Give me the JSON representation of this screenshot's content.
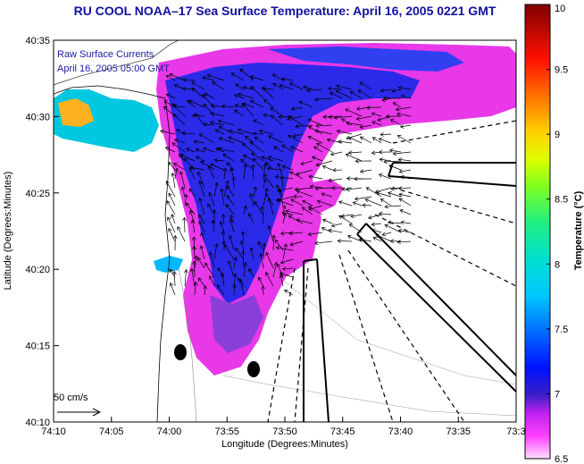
{
  "title": "RU COOL  NOAA–17  Sea Surface Temperature:  April 16, 2005 0221 GMT",
  "map": {
    "xlabel": "Longitude (Degrees:Minutes)",
    "ylabel": "Latitude (Degrees:Minutes)",
    "x_ticks": [
      "74:10",
      "74:05",
      "74:00",
      "73:55",
      "73:50",
      "73:45",
      "73:40",
      "73:35",
      "73:3"
    ],
    "y_ticks": [
      "40:35",
      "40:30",
      "40:25",
      "40:20",
      "40:15",
      "40:10"
    ],
    "overlay_line1": "Raw Surface Currents",
    "overlay_line2": "April 16, 2005 05:00 GMT",
    "scale_label": "50 cm/s"
  },
  "colorbar": {
    "title": "Temperature (°C)",
    "ticks": [
      "10",
      "9.5",
      "9",
      "8.5",
      "8",
      "7.5",
      "7",
      "6.5"
    ],
    "min": 6.5,
    "max": 10
  }
}
